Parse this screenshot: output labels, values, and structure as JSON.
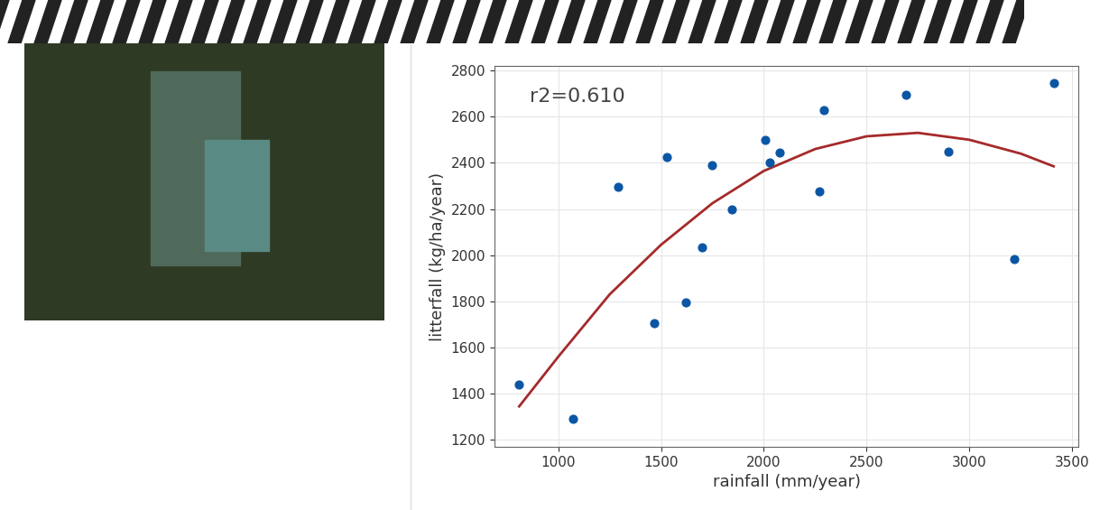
{
  "chart_data": {
    "type": "scatter",
    "xlabel": "rainfall (mm/year)",
    "ylabel": "litterfall (kg/ha/year)",
    "annotation": "r2=0.610",
    "xlim": [
      690,
      3530
    ],
    "xticks": [
      1000,
      1500,
      2000,
      2500,
      3000,
      3500
    ],
    "ylim": [
      1170,
      2820
    ],
    "yticks": [
      1200,
      1400,
      1600,
      1800,
      2000,
      2200,
      2400,
      2600,
      2800
    ],
    "grid": true,
    "series": [
      {
        "type": "scatter",
        "color": "#0b56a4",
        "marker": "circle",
        "x": [
          810,
          1070,
          1290,
          1465,
          1530,
          1620,
          1700,
          1750,
          1845,
          2005,
          2030,
          2075,
          2270,
          2290,
          2690,
          2900,
          3220,
          3410
        ],
        "values": [
          1440,
          1290,
          2295,
          1705,
          2425,
          1795,
          2035,
          2390,
          2200,
          2500,
          2400,
          2445,
          2275,
          2630,
          2695,
          2450,
          1985,
          2745
        ]
      },
      {
        "type": "line",
        "color": "#a52a2a",
        "line_style": "solid",
        "x": [
          810,
          1000,
          1250,
          1500,
          1750,
          2000,
          2250,
          2500,
          2750,
          3000,
          3250,
          3410
        ],
        "values": [
          1345,
          1560,
          1830,
          2045,
          2225,
          2365,
          2460,
          2515,
          2530,
          2500,
          2440,
          2385
        ]
      }
    ]
  }
}
